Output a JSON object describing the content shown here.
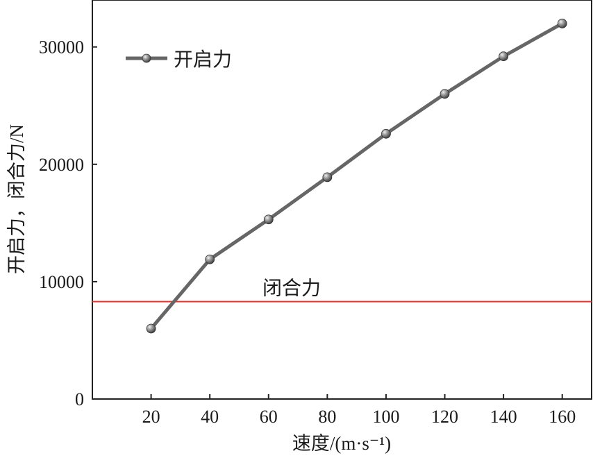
{
  "chart_data": {
    "type": "line",
    "x": [
      20,
      40,
      60,
      80,
      100,
      120,
      140,
      160
    ],
    "series": [
      {
        "name": "开启力",
        "values": [
          6000,
          11900,
          15300,
          18900,
          22600,
          26000,
          29200,
          32000
        ],
        "color": "#666666",
        "marker": "sphere"
      }
    ],
    "reference_lines": [
      {
        "label": "闭合力",
        "y": 8300,
        "color": "#e8332a"
      }
    ],
    "xlabel": "速度/(m·s⁻¹)",
    "ylabel": "开启力，闭合力/N",
    "xticks": [
      20,
      40,
      60,
      80,
      100,
      120,
      140,
      160
    ],
    "yticks": [
      0,
      10000,
      20000,
      30000
    ],
    "xlim": [
      0,
      170
    ],
    "ylim": [
      0,
      34000
    ],
    "grid": false,
    "legend_position": "top-left"
  }
}
